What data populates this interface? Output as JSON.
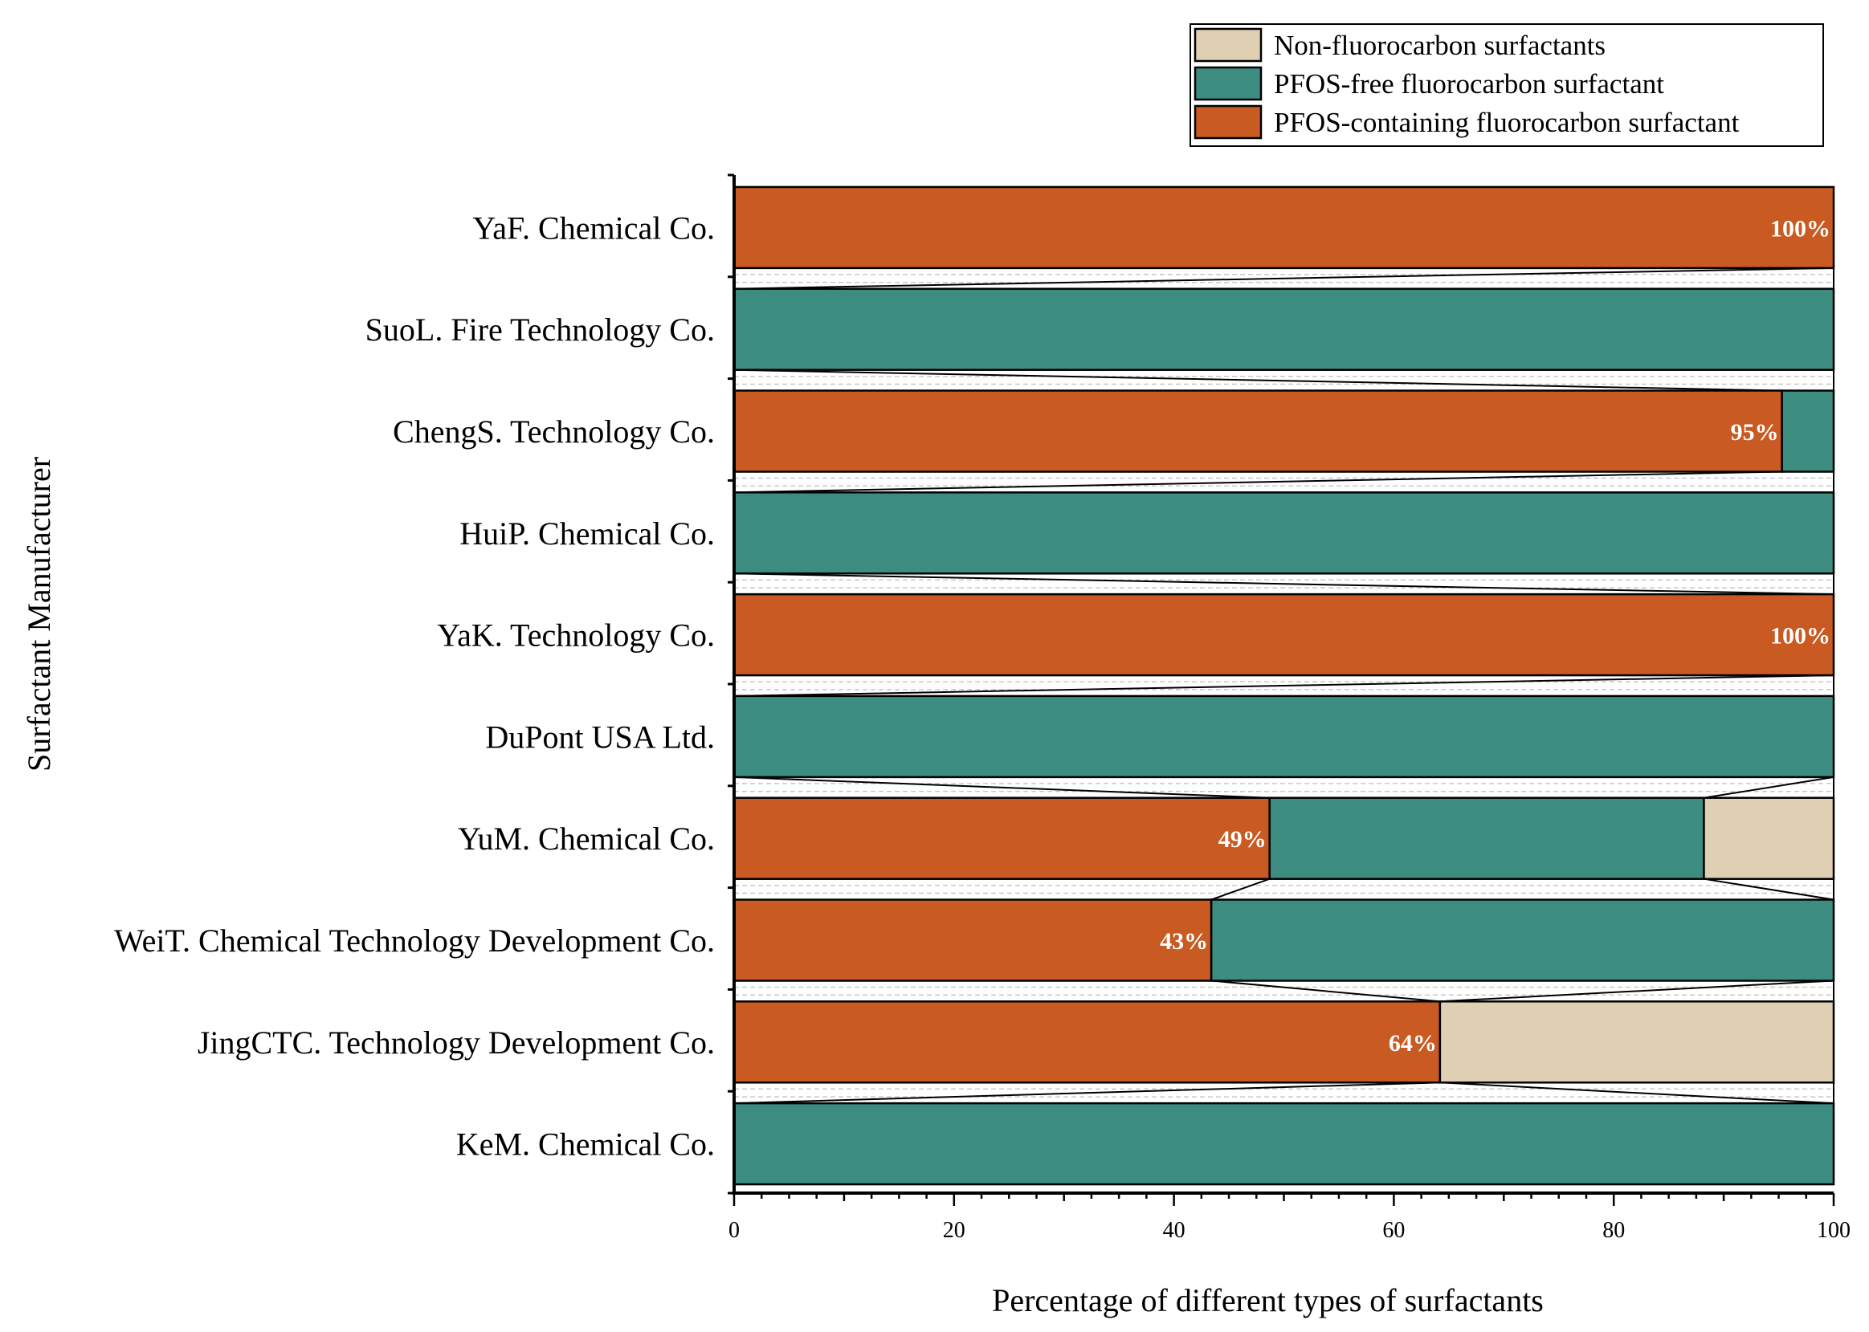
{
  "chart_data": {
    "type": "bar",
    "orientation": "horizontal",
    "stacked": true,
    "xlabel": "Percentage of different types of surfactants",
    "ylabel": "Surfactant Manufacturer",
    "xlim": [
      0,
      100
    ],
    "xticks": [
      "0",
      "20",
      "40",
      "60",
      "80",
      "100"
    ],
    "legend_position": "top-right",
    "categories": [
      "YaF. Chemical Co.",
      "SuoL. Fire Technology Co.",
      "ChengS. Technology Co.",
      "HuiP. Chemical Co.",
      "YaK. Technology Co.",
      "DuPont USA Ltd.",
      "YuM. Chemical Co.",
      "WeiT. Chemical Technology Development Co.",
      "JingCTC. Technology Development Co.",
      "KeM. Chemical Co."
    ],
    "series": [
      {
        "name": "PFOS-containing fluorocarbon surfactant",
        "color": "#C85A22",
        "values": [
          100,
          0,
          95.3,
          0,
          100,
          0,
          48.7,
          43.4,
          64.2,
          0
        ]
      },
      {
        "name": "PFOS-free fluorocarbon surfactant",
        "color": "#3C8C80",
        "values": [
          0,
          100,
          4.7,
          100,
          0,
          100,
          39.5,
          56.6,
          0,
          100
        ]
      },
      {
        "name": "Non-fluorocarbon surfactants",
        "color": "#DFCFB3",
        "values": [
          0,
          0,
          0,
          0,
          0,
          0,
          11.8,
          0,
          35.8,
          0
        ]
      }
    ],
    "legend_order": [
      "Non-fluorocarbon surfactants",
      "PFOS-free fluorocarbon surfactant",
      "PFOS-containing fluorocarbon surfactant"
    ],
    "data_labels": [
      "100%",
      "",
      "95%",
      "",
      "100%",
      "",
      "49%",
      "43%",
      "64%",
      ""
    ]
  }
}
